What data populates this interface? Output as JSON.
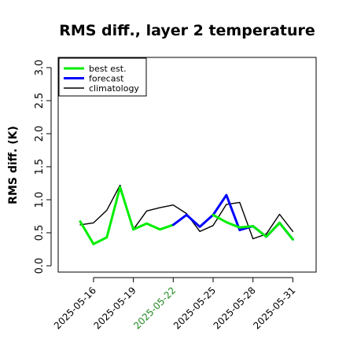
{
  "chart_data": {
    "type": "line",
    "title": "RMS diff., layer 2 temperature",
    "ylabel": "RMS diff. (K)",
    "ylim": [
      0,
      3.0
    ],
    "yticks": [
      "0.0",
      "0.5",
      "1.0",
      "1.5",
      "2.0",
      "2.5",
      "3.0"
    ],
    "xticks": [
      {
        "label": "2025-05-16",
        "color": "#000000"
      },
      {
        "label": "2025-05-19",
        "color": "#000000"
      },
      {
        "label": "2025-05-22",
        "color": "#228B22"
      },
      {
        "label": "2025-05-25",
        "color": "#000000"
      },
      {
        "label": "2025-05-28",
        "color": "#000000"
      },
      {
        "label": "2025-05-31",
        "color": "#000000"
      }
    ],
    "x": [
      "2025-05-15",
      "2025-05-16",
      "2025-05-17",
      "2025-05-18",
      "2025-05-19",
      "2025-05-20",
      "2025-05-21",
      "2025-05-22",
      "2025-05-23",
      "2025-05-24",
      "2025-05-25",
      "2025-05-26",
      "2025-05-27",
      "2025-05-28",
      "2025-05-29",
      "2025-05-30",
      "2025-05-31"
    ],
    "legend_position": "top-left",
    "grid": false,
    "series": [
      {
        "name": "best est.",
        "color": "#00ee00",
        "width": 3,
        "values": [
          0.67,
          0.33,
          0.43,
          1.19,
          0.55,
          0.64,
          0.55,
          0.62,
          null,
          null,
          null,
          null,
          null,
          null,
          null,
          null,
          null
        ]
      },
      {
        "name": "forecast",
        "color": "#0000ff",
        "width": 3,
        "values": [
          null,
          null,
          null,
          null,
          null,
          null,
          null,
          0.62,
          0.77,
          0.59,
          0.77,
          1.07,
          0.54,
          0.6,
          0.44,
          0.65,
          0.4
        ]
      },
      {
        "name": "best est.",
        "color": "#00ee00",
        "width": 3,
        "hide_legend": true,
        "values": [
          null,
          null,
          null,
          null,
          null,
          null,
          null,
          null,
          null,
          null,
          0.77,
          0.66,
          0.58,
          0.6,
          0.44,
          0.65,
          0.4
        ]
      },
      {
        "name": "climatology",
        "color": "#000000",
        "width": 1.4,
        "values": [
          0.62,
          0.65,
          0.84,
          1.22,
          0.55,
          0.83,
          0.88,
          0.92,
          0.79,
          0.52,
          0.61,
          0.93,
          0.96,
          0.41,
          0.48,
          0.78,
          0.52
        ]
      }
    ]
  }
}
